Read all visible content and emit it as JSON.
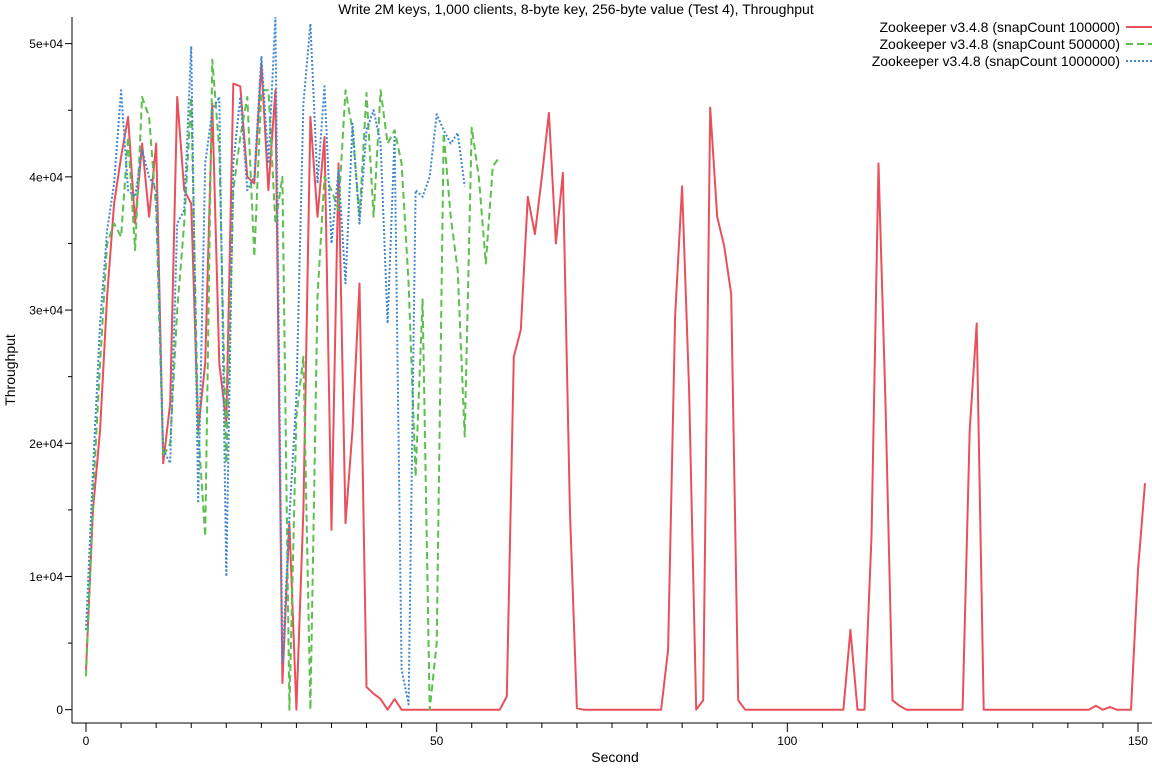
{
  "chart_data": {
    "type": "line",
    "title": "Write 2M keys, 1,000 clients, 8-byte key, 256-byte value (Test 4), Throughput",
    "xlabel": "Second",
    "ylabel": "Throughput",
    "xlim": [
      -2,
      152
    ],
    "ylim": [
      -1000,
      52000
    ],
    "xticks": [
      0,
      50,
      100,
      150
    ],
    "xticks_minor": [
      5,
      10,
      15,
      20,
      25,
      30,
      35,
      40,
      45,
      55,
      60,
      65,
      70,
      75,
      80,
      85,
      90,
      95,
      105,
      110,
      115,
      120,
      125,
      130,
      135,
      140,
      145
    ],
    "yticks": [
      {
        "value": 0,
        "label": "0"
      },
      {
        "value": 10000,
        "label": "1e+04"
      },
      {
        "value": 20000,
        "label": "2e+04"
      },
      {
        "value": 30000,
        "label": "3e+04"
      },
      {
        "value": 40000,
        "label": "4e+04"
      },
      {
        "value": 50000,
        "label": "5e+04"
      }
    ],
    "yticks_minor": [
      5000,
      15000,
      25000,
      35000,
      45000
    ],
    "grid": false,
    "legend_position": "top-right",
    "series": [
      {
        "name": "Zookeeper v3.4.8 (snapCount 100000)",
        "color": "#e8515c",
        "dash": "solid",
        "points": [
          [
            0,
            3000
          ],
          [
            1,
            15000
          ],
          [
            2,
            21000
          ],
          [
            3,
            31000
          ],
          [
            4,
            38000
          ],
          [
            5,
            41500
          ],
          [
            6,
            44500
          ],
          [
            7,
            36500
          ],
          [
            8,
            42500
          ],
          [
            9,
            37000
          ],
          [
            10,
            42500
          ],
          [
            11,
            18500
          ],
          [
            12,
            23000
          ],
          [
            13,
            46000
          ],
          [
            14,
            39000
          ],
          [
            15,
            38000
          ],
          [
            16,
            21000
          ],
          [
            17,
            26000
          ],
          [
            18,
            45500
          ],
          [
            19,
            26000
          ],
          [
            20,
            21500
          ],
          [
            21,
            47000
          ],
          [
            22,
            46800
          ],
          [
            23,
            40000
          ],
          [
            24,
            39500
          ],
          [
            25,
            48500
          ],
          [
            26,
            39000
          ],
          [
            27,
            46500
          ],
          [
            28,
            2000
          ],
          [
            29,
            14000
          ],
          [
            30,
            0
          ],
          [
            31,
            15000
          ],
          [
            32,
            44500
          ],
          [
            33,
            37000
          ],
          [
            34,
            43000
          ],
          [
            35,
            13500
          ],
          [
            36,
            41000
          ],
          [
            37,
            14000
          ],
          [
            38,
            21000
          ],
          [
            39,
            32000
          ],
          [
            40,
            1700
          ],
          [
            41,
            1200
          ],
          [
            42,
            800
          ],
          [
            43,
            0
          ],
          [
            44,
            800
          ],
          [
            45,
            0
          ],
          [
            46,
            0
          ],
          [
            50,
            0
          ],
          [
            55,
            0
          ],
          [
            59,
            0
          ],
          [
            60,
            1000
          ],
          [
            61,
            26500
          ],
          [
            62,
            28500
          ],
          [
            63,
            38500
          ],
          [
            64,
            35700
          ],
          [
            65,
            40000
          ],
          [
            66,
            44800
          ],
          [
            67,
            35000
          ],
          [
            68,
            40300
          ],
          [
            69,
            15000
          ],
          [
            70,
            100
          ],
          [
            71,
            0
          ],
          [
            75,
            0
          ],
          [
            80,
            0
          ],
          [
            82,
            0
          ],
          [
            83,
            4500
          ],
          [
            84,
            29500
          ],
          [
            85,
            39300
          ],
          [
            86,
            24000
          ],
          [
            87,
            0
          ],
          [
            88,
            700
          ],
          [
            89,
            45200
          ],
          [
            90,
            37000
          ],
          [
            91,
            34800
          ],
          [
            92,
            31200
          ],
          [
            93,
            700
          ],
          [
            94,
            0
          ],
          [
            100,
            0
          ],
          [
            105,
            0
          ],
          [
            108,
            0
          ],
          [
            109,
            6000
          ],
          [
            110,
            0
          ],
          [
            111,
            0
          ],
          [
            112,
            13000
          ],
          [
            113,
            41000
          ],
          [
            114,
            23000
          ],
          [
            115,
            700
          ],
          [
            116,
            300
          ],
          [
            117,
            0
          ],
          [
            120,
            0
          ],
          [
            125,
            0
          ],
          [
            126,
            21000
          ],
          [
            127,
            29000
          ],
          [
            128,
            0
          ],
          [
            130,
            0
          ],
          [
            135,
            0
          ],
          [
            140,
            0
          ],
          [
            143,
            0
          ],
          [
            144,
            300
          ],
          [
            145,
            0
          ],
          [
            146,
            200
          ],
          [
            147,
            0
          ],
          [
            149,
            0
          ],
          [
            150,
            10500
          ],
          [
            151,
            17000
          ]
        ]
      },
      {
        "name": "Zookeeper v3.4.8 (snapCount 500000)",
        "color": "#5cbf4e",
        "dash": "dashed",
        "points": [
          [
            0,
            2500
          ],
          [
            1,
            16000
          ],
          [
            2,
            26000
          ],
          [
            3,
            35000
          ],
          [
            4,
            36500
          ],
          [
            5,
            35500
          ],
          [
            6,
            43000
          ],
          [
            7,
            34500
          ],
          [
            8,
            46000
          ],
          [
            9,
            44500
          ],
          [
            10,
            37500
          ],
          [
            11,
            19000
          ],
          [
            12,
            20000
          ],
          [
            13,
            30000
          ],
          [
            14,
            36500
          ],
          [
            15,
            46000
          ],
          [
            16,
            21000
          ],
          [
            17,
            13000
          ],
          [
            18,
            48800
          ],
          [
            19,
            42000
          ],
          [
            20,
            18500
          ],
          [
            21,
            39000
          ],
          [
            22,
            43000
          ],
          [
            23,
            46000
          ],
          [
            24,
            34000
          ],
          [
            25,
            46500
          ],
          [
            26,
            46500
          ],
          [
            27,
            36500
          ],
          [
            28,
            40000
          ],
          [
            29,
            0
          ],
          [
            30,
            22000
          ],
          [
            31,
            26500
          ],
          [
            32,
            0
          ],
          [
            33,
            31000
          ],
          [
            34,
            40000
          ],
          [
            35,
            39000
          ],
          [
            36,
            37500
          ],
          [
            37,
            46500
          ],
          [
            38,
            43500
          ],
          [
            39,
            37000
          ],
          [
            40,
            46300
          ],
          [
            41,
            37000
          ],
          [
            42,
            46500
          ],
          [
            43,
            42500
          ],
          [
            44,
            43500
          ],
          [
            45,
            41000
          ],
          [
            46,
            32000
          ],
          [
            47,
            17500
          ],
          [
            48,
            30800
          ],
          [
            49,
            0
          ],
          [
            50,
            5000
          ],
          [
            51,
            43300
          ],
          [
            52,
            37000
          ],
          [
            53,
            33000
          ],
          [
            54,
            20500
          ],
          [
            55,
            43700
          ],
          [
            56,
            40000
          ],
          [
            57,
            33500
          ],
          [
            58,
            40800
          ],
          [
            59,
            41500
          ]
        ]
      },
      {
        "name": "Zookeeper v3.4.8 (snapCount 1000000)",
        "color": "#3f87d0",
        "dash": "dotted",
        "points": [
          [
            0,
            6000
          ],
          [
            1,
            18000
          ],
          [
            2,
            29000
          ],
          [
            3,
            36000
          ],
          [
            4,
            39500
          ],
          [
            5,
            46500
          ],
          [
            6,
            39000
          ],
          [
            7,
            38500
          ],
          [
            8,
            42000
          ],
          [
            9,
            40000
          ],
          [
            10,
            39000
          ],
          [
            11,
            19500
          ],
          [
            12,
            18500
          ],
          [
            13,
            36500
          ],
          [
            14,
            37500
          ],
          [
            15,
            49800
          ],
          [
            16,
            15500
          ],
          [
            17,
            41000
          ],
          [
            18,
            45000
          ],
          [
            19,
            46000
          ],
          [
            20,
            10000
          ],
          [
            21,
            41000
          ],
          [
            22,
            46000
          ],
          [
            23,
            39000
          ],
          [
            24,
            40000
          ],
          [
            25,
            49000
          ],
          [
            26,
            41000
          ],
          [
            27,
            52000
          ],
          [
            28,
            3500
          ],
          [
            29,
            14500
          ],
          [
            30,
            23500
          ],
          [
            31,
            45500
          ],
          [
            32,
            51500
          ],
          [
            33,
            39500
          ],
          [
            34,
            46800
          ],
          [
            35,
            35000
          ],
          [
            36,
            40500
          ],
          [
            37,
            32000
          ],
          [
            38,
            44000
          ],
          [
            39,
            36500
          ],
          [
            40,
            43500
          ],
          [
            41,
            45000
          ],
          [
            42,
            42500
          ],
          [
            43,
            29000
          ],
          [
            44,
            43000
          ],
          [
            45,
            3000
          ],
          [
            46,
            400
          ],
          [
            47,
            39000
          ],
          [
            48,
            38500
          ],
          [
            49,
            40000
          ],
          [
            50,
            44700
          ],
          [
            51,
            43500
          ],
          [
            52,
            42500
          ],
          [
            53,
            43300
          ],
          [
            54,
            39300
          ]
        ]
      }
    ]
  }
}
